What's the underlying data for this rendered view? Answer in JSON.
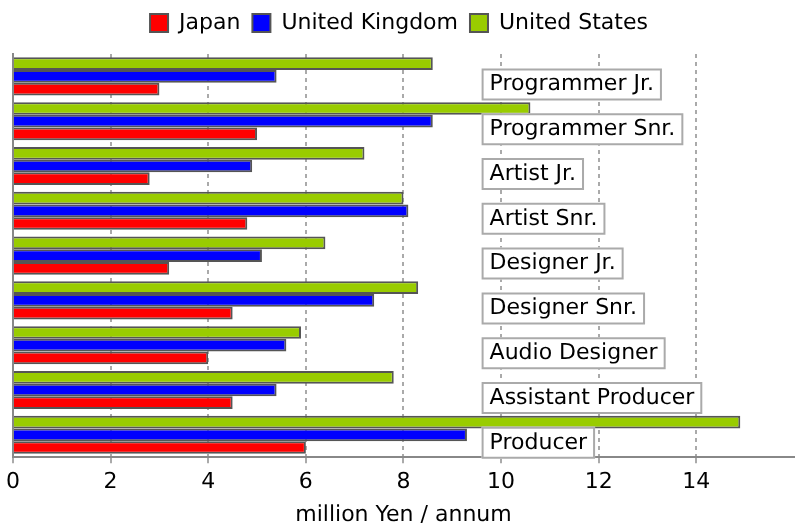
{
  "chart_data": {
    "type": "bar",
    "orientation": "horizontal",
    "xlabel": "million Yen / annum",
    "categories": [
      "Programmer Jr.",
      "Programmer Snr.",
      "Artist Jr.",
      "Artist Snr.",
      "Designer Jr.",
      "Designer Snr.",
      "Audio Designer",
      "Assistant Producer",
      "Producer"
    ],
    "series": [
      {
        "name": "Japan",
        "color": "#ff0000",
        "values": [
          3.0,
          5.0,
          2.8,
          4.8,
          3.2,
          4.5,
          4.0,
          4.5,
          6.0
        ]
      },
      {
        "name": "United Kingdom",
        "color": "#0000ff",
        "values": [
          5.4,
          8.6,
          4.9,
          8.1,
          5.1,
          7.4,
          5.6,
          5.4,
          9.3
        ]
      },
      {
        "name": "United States",
        "color": "#99cc00",
        "values": [
          8.6,
          10.6,
          7.2,
          8.0,
          6.4,
          8.3,
          5.9,
          7.8,
          14.9
        ]
      }
    ],
    "xlim": [
      0,
      16
    ],
    "xticks": [
      0,
      2,
      4,
      6,
      8,
      10,
      12,
      14
    ],
    "grid": "x",
    "legend": "top"
  }
}
